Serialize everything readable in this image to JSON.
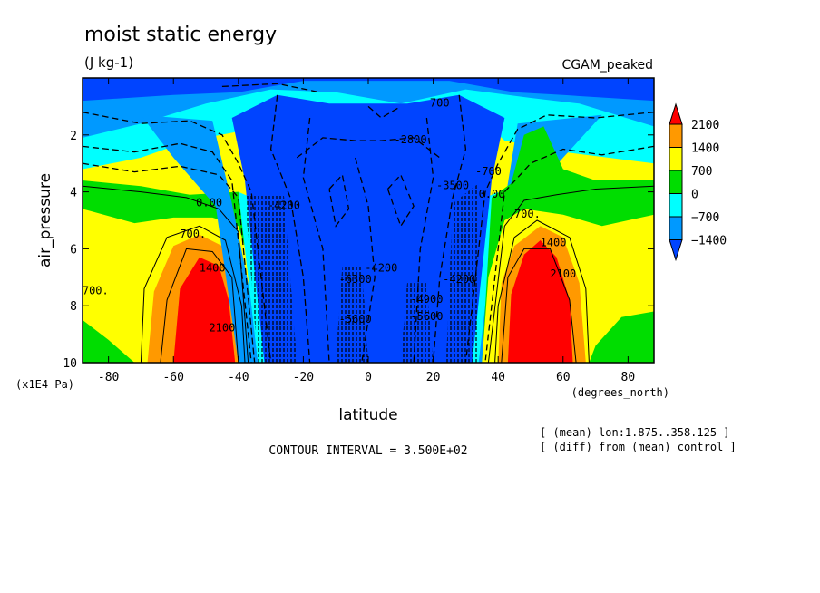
{
  "chart_data": {
    "type": "heatmap",
    "title": "moist static energy",
    "units": "(J kg-1)",
    "dataset_label": "CGAM_peaked",
    "xlabel": "latitude",
    "x_units": "(degrees_north)",
    "ylabel": "air_pressure",
    "y_units": "(x1E4 Pa)",
    "xlim": [
      -88,
      88
    ],
    "ylim": [
      0,
      10
    ],
    "y_inverted": true,
    "x_ticks": [
      "-80",
      "-60",
      "-40",
      "-20",
      "0",
      "20",
      "40",
      "60",
      "80"
    ],
    "x_tick_values": [
      -80,
      -60,
      -40,
      -20,
      0,
      20,
      40,
      60,
      80
    ],
    "y_ticks": [
      "2",
      "4",
      "6",
      "8",
      "10"
    ],
    "y_tick_values": [
      2,
      4,
      6,
      8,
      10
    ],
    "colorbar": {
      "labels": [
        "2100",
        "1400",
        "700",
        "0",
        "−700",
        "−1400"
      ],
      "levels": [
        2100,
        1400,
        700,
        0,
        -700,
        -1400
      ],
      "colors": [
        "#ff0000",
        "#ff9900",
        "#ffff00",
        "#00dd00",
        "#00ffff",
        "#0099ff",
        "#0044ff"
      ]
    },
    "contour_interval_text": "CONTOUR INTERVAL = 3.500E+02",
    "notes": [
      "[ (mean) lon:1.875..358.125 ]",
      "[ (diff) from (mean) control ]"
    ],
    "contour_labels": [
      {
        "text": "700",
        "lat": 22,
        "p": 1.0
      },
      {
        "text": "-2800",
        "lat": 13,
        "p": 2.3
      },
      {
        "text": "-3500",
        "lat": 26,
        "p": 3.9
      },
      {
        "text": "-4200",
        "lat": -26,
        "p": 4.6
      },
      {
        "text": "-4200",
        "lat": 4,
        "p": 6.8
      },
      {
        "text": "-4200",
        "lat": 28,
        "p": 7.2
      },
      {
        "text": "-4900",
        "lat": 18,
        "p": 7.9
      },
      {
        "text": "-5600",
        "lat": 18,
        "p": 8.5
      },
      {
        "text": "-5600",
        "lat": -4,
        "p": 8.6
      },
      {
        "text": "-6300",
        "lat": -4,
        "p": 7.2
      },
      {
        "text": "700.",
        "lat": -54,
        "p": 5.6
      },
      {
        "text": "0.00",
        "lat": -49,
        "p": 4.5
      },
      {
        "text": "1400",
        "lat": -48,
        "p": 6.8
      },
      {
        "text": "2100",
        "lat": -45,
        "p": 8.9
      },
      {
        "text": "700.",
        "lat": -84,
        "p": 7.6
      },
      {
        "text": "0.00",
        "lat": 38,
        "p": 4.2
      },
      {
        "text": "-700",
        "lat": 37,
        "p": 3.4
      },
      {
        "text": "700.",
        "lat": 49,
        "p": 4.9
      },
      {
        "text": "1400",
        "lat": 57,
        "p": 5.9
      },
      {
        "text": "2100",
        "lat": 60,
        "p": 7.0
      }
    ]
  }
}
